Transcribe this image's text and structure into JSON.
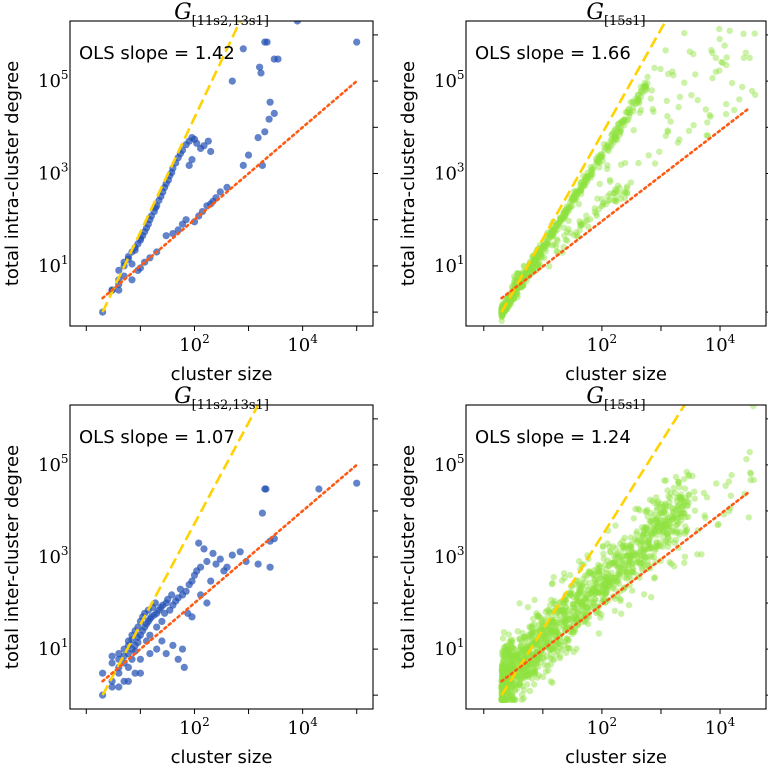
{
  "figure": {
    "ylabel_top": "total intra-cluster degree",
    "ylabel_bottom": "total inter-cluster degree",
    "xlabel": "cluster size"
  },
  "colors": {
    "blue": "#1f4fb4",
    "green": "#8fe33f",
    "yellow_line": "#ffd200",
    "orange_line": "#ff5a14"
  },
  "chart_data": [
    {
      "id": "top-left",
      "type": "scatter",
      "title": "G[11s2,13s1]",
      "title_sub": "[11s2,13s1]",
      "xlabel": "cluster size",
      "ylabel": "total intra-cluster degree",
      "xscale": "log",
      "yscale": "log",
      "xlim": [
        0.5,
        200000
      ],
      "ylim": [
        0.5,
        2000000
      ],
      "x_tick_labels": [
        "10^2",
        "10^4"
      ],
      "y_tick_labels": [
        "10^1",
        "10^3",
        "10^5"
      ],
      "annotation": "OLS slope = 1.42",
      "marker_color": "#1f4fb4",
      "marker_opacity": 0.7,
      "lines": [
        {
          "name": "yellow-dashed",
          "style": "dashed",
          "color": "#ffd200",
          "x": [
            2,
            700
          ],
          "y": [
            1,
            2000000
          ]
        },
        {
          "name": "orange-dotted",
          "style": "dotted",
          "color": "#ff5a14",
          "x": [
            2,
            100000
          ],
          "y": [
            2,
            100000
          ]
        }
      ],
      "points": [
        [
          2,
          1
        ],
        [
          3,
          3
        ],
        [
          3,
          3
        ],
        [
          4,
          4
        ],
        [
          4,
          5
        ],
        [
          4,
          8
        ],
        [
          5,
          10
        ],
        [
          5,
          6
        ],
        [
          5,
          12
        ],
        [
          6,
          14
        ],
        [
          6,
          16
        ],
        [
          7,
          11
        ],
        [
          7,
          20
        ],
        [
          8,
          25
        ],
        [
          8,
          22
        ],
        [
          9,
          30
        ],
        [
          10,
          40
        ],
        [
          10,
          36
        ],
        [
          11,
          45
        ],
        [
          12,
          55
        ],
        [
          13,
          66
        ],
        [
          14,
          80
        ],
        [
          15,
          100
        ],
        [
          16,
          120
        ],
        [
          18,
          150
        ],
        [
          19,
          180
        ],
        [
          20,
          200
        ],
        [
          22,
          260
        ],
        [
          24,
          320
        ],
        [
          26,
          400
        ],
        [
          28,
          500
        ],
        [
          30,
          600
        ],
        [
          33,
          720
        ],
        [
          35,
          900
        ],
        [
          38,
          1050
        ],
        [
          40,
          1300
        ],
        [
          45,
          1700
        ],
        [
          50,
          2200
        ],
        [
          55,
          2700
        ],
        [
          60,
          3200
        ],
        [
          70,
          4200
        ],
        [
          80,
          5000
        ],
        [
          90,
          6000
        ],
        [
          100,
          5500
        ],
        [
          110,
          4500
        ],
        [
          130,
          3500
        ],
        [
          200,
          3000
        ],
        [
          4,
          3
        ],
        [
          7,
          5
        ],
        [
          10,
          9
        ],
        [
          20,
          20
        ],
        [
          30,
          45
        ],
        [
          50,
          60
        ],
        [
          60,
          80
        ],
        [
          100,
          90
        ],
        [
          120,
          120
        ],
        [
          140,
          150
        ],
        [
          170,
          200
        ],
        [
          200,
          220
        ],
        [
          220,
          250
        ],
        [
          250,
          300
        ],
        [
          9,
          8
        ],
        [
          12,
          12
        ],
        [
          15,
          15
        ],
        [
          40,
          50
        ],
        [
          70,
          100
        ],
        [
          80,
          1500
        ],
        [
          90,
          2000
        ],
        [
          150,
          4000
        ],
        [
          180,
          5000
        ],
        [
          1600,
          200000
        ],
        [
          1800,
          1500
        ],
        [
          2000,
          700000
        ],
        [
          2200,
          700000
        ],
        [
          2400,
          15000
        ],
        [
          2000,
          8000
        ],
        [
          3000,
          20000
        ],
        [
          3000,
          300000
        ],
        [
          3500,
          300000
        ],
        [
          800,
          500000
        ],
        [
          8000,
          2000000
        ],
        [
          100000,
          700000
        ],
        [
          1500,
          6000
        ],
        [
          2500,
          35000
        ],
        [
          1700,
          150000
        ],
        [
          500,
          100000
        ],
        [
          300,
          400
        ],
        [
          400,
          500
        ],
        [
          800,
          1500
        ],
        [
          1000,
          2500
        ]
      ]
    },
    {
      "id": "top-right",
      "type": "scatter",
      "title": "G[15s1]",
      "title_sub": "[15s1]",
      "xlabel": "cluster size",
      "ylabel": "total intra-cluster degree",
      "xscale": "log",
      "yscale": "log",
      "xlim": [
        0.5,
        60000
      ],
      "ylim": [
        0.5,
        2000000
      ],
      "x_tick_labels": [
        "10^2",
        "10^4"
      ],
      "y_tick_labels": [
        "10^1",
        "10^3",
        "10^5"
      ],
      "annotation": "OLS slope = 1.66",
      "marker_color": "#8fe33f",
      "marker_opacity": 0.45,
      "lines": [
        {
          "name": "yellow-dashed",
          "style": "dashed",
          "color": "#ffd200",
          "x": [
            2,
            1200
          ],
          "y": [
            1,
            2000000
          ]
        },
        {
          "name": "orange-dotted",
          "style": "dotted",
          "color": "#ff5a14",
          "x": [
            2,
            30000
          ],
          "y": [
            2,
            25000
          ]
        }
      ],
      "points": "generated-dense"
    },
    {
      "id": "bottom-left",
      "type": "scatter",
      "title": "G[11s2,13s1]",
      "title_sub": "[11s2,13s1]",
      "xlabel": "cluster size",
      "ylabel": "total inter-cluster degree",
      "xscale": "log",
      "yscale": "log",
      "xlim": [
        0.5,
        200000
      ],
      "ylim": [
        0.5,
        2000000
      ],
      "x_tick_labels": [
        "10^2",
        "10^4"
      ],
      "y_tick_labels": [
        "10^1",
        "10^3",
        "10^5"
      ],
      "annotation": "OLS slope = 1.07",
      "marker_color": "#1f4fb4",
      "marker_opacity": 0.7,
      "lines": [
        {
          "name": "yellow-dashed",
          "style": "dashed",
          "color": "#ffd200",
          "x": [
            2,
            1500
          ],
          "y": [
            1,
            2000000
          ]
        },
        {
          "name": "orange-dotted",
          "style": "dotted",
          "color": "#ff5a14",
          "x": [
            2,
            100000
          ],
          "y": [
            2,
            100000
          ]
        }
      ],
      "points": [
        [
          2,
          1
        ],
        [
          2,
          3
        ],
        [
          3,
          2
        ],
        [
          3,
          5
        ],
        [
          3,
          7
        ],
        [
          3,
          1.5
        ],
        [
          4,
          4
        ],
        [
          4,
          6
        ],
        [
          4,
          3
        ],
        [
          4,
          8
        ],
        [
          5,
          5
        ],
        [
          5,
          10
        ],
        [
          5,
          2
        ],
        [
          5,
          7
        ],
        [
          6,
          8
        ],
        [
          6,
          12
        ],
        [
          6,
          4
        ],
        [
          6,
          15
        ],
        [
          7,
          10
        ],
        [
          7,
          16
        ],
        [
          7,
          20
        ],
        [
          7,
          6
        ],
        [
          8,
          12
        ],
        [
          8,
          25
        ],
        [
          8,
          9
        ],
        [
          9,
          18
        ],
        [
          9,
          30
        ],
        [
          9,
          14
        ],
        [
          10,
          20
        ],
        [
          10,
          40
        ],
        [
          10,
          3
        ],
        [
          11,
          25
        ],
        [
          11,
          50
        ],
        [
          12,
          30
        ],
        [
          12,
          60
        ],
        [
          13,
          35
        ],
        [
          13,
          15
        ],
        [
          14,
          40
        ],
        [
          14,
          70
        ],
        [
          15,
          45
        ],
        [
          15,
          20
        ],
        [
          16,
          50
        ],
        [
          17,
          80
        ],
        [
          18,
          55
        ],
        [
          19,
          100
        ],
        [
          20,
          60
        ],
        [
          20,
          30
        ],
        [
          22,
          70
        ],
        [
          24,
          80
        ],
        [
          25,
          40
        ],
        [
          26,
          90
        ],
        [
          28,
          60
        ],
        [
          30,
          100
        ],
        [
          30,
          8
        ],
        [
          32,
          120
        ],
        [
          35,
          70
        ],
        [
          38,
          150
        ],
        [
          40,
          90
        ],
        [
          45,
          110
        ],
        [
          50,
          6
        ],
        [
          50,
          130
        ],
        [
          55,
          200
        ],
        [
          60,
          150
        ],
        [
          65,
          4
        ],
        [
          70,
          180
        ],
        [
          75,
          60
        ],
        [
          80,
          250
        ],
        [
          90,
          300
        ],
        [
          100,
          400
        ],
        [
          110,
          500
        ],
        [
          120,
          2000
        ],
        [
          130,
          600
        ],
        [
          150,
          1500
        ],
        [
          170,
          800
        ],
        [
          200,
          300
        ],
        [
          220,
          1200
        ],
        [
          250,
          700
        ],
        [
          300,
          900
        ],
        [
          350,
          500
        ],
        [
          400,
          600
        ],
        [
          500,
          1100
        ],
        [
          700,
          1300
        ],
        [
          900,
          800
        ],
        [
          1500,
          700
        ],
        [
          1800,
          9000
        ],
        [
          2000,
          30000
        ],
        [
          2100,
          30000
        ],
        [
          2500,
          2200
        ],
        [
          3000,
          2500
        ],
        [
          2500,
          600
        ],
        [
          20000,
          30000
        ],
        [
          100000,
          40000
        ],
        [
          20,
          10
        ],
        [
          25,
          15
        ],
        [
          15,
          8
        ],
        [
          10,
          6
        ],
        [
          40,
          12
        ],
        [
          60,
          10
        ],
        [
          90,
          50
        ],
        [
          130,
          150
        ],
        [
          170,
          100
        ],
        [
          6,
          2
        ],
        [
          4,
          1.5
        ],
        [
          8,
          3
        ]
      ]
    },
    {
      "id": "bottom-right",
      "type": "scatter",
      "title": "G[15s1]",
      "title_sub": "[15s1]",
      "xlabel": "cluster size",
      "ylabel": "total inter-cluster degree",
      "xscale": "log",
      "yscale": "log",
      "xlim": [
        0.5,
        60000
      ],
      "ylim": [
        0.5,
        2000000
      ],
      "x_tick_labels": [
        "10^2",
        "10^4"
      ],
      "y_tick_labels": [
        "10^1",
        "10^3",
        "10^5"
      ],
      "annotation": "OLS slope = 1.24",
      "marker_color": "#8fe33f",
      "marker_opacity": 0.45,
      "lines": [
        {
          "name": "yellow-dashed",
          "style": "dashed",
          "color": "#ffd200",
          "x": [
            2,
            2500
          ],
          "y": [
            1,
            2000000
          ]
        },
        {
          "name": "orange-dotted",
          "style": "dotted",
          "color": "#ff5a14",
          "x": [
            2,
            30000
          ],
          "y": [
            2,
            25000
          ]
        }
      ],
      "points": "generated-dense"
    }
  ]
}
